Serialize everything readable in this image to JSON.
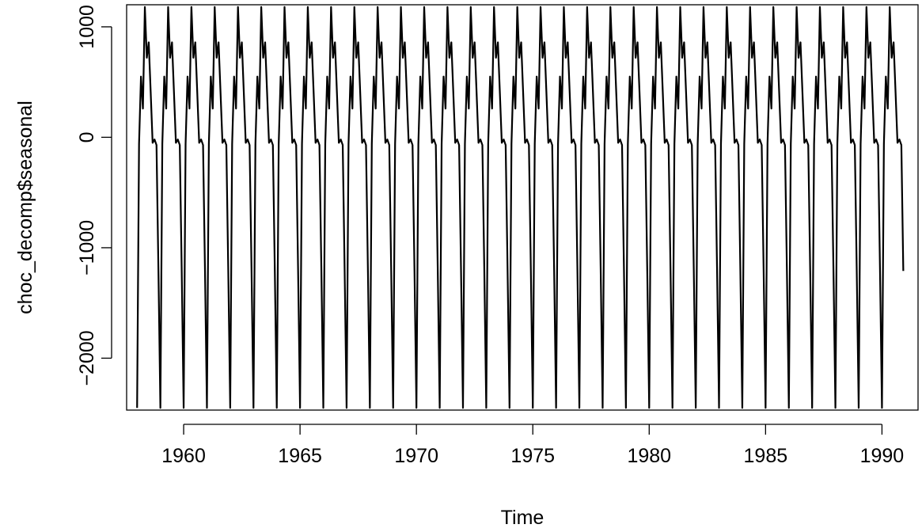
{
  "chart_data": {
    "type": "line",
    "title": "",
    "xlabel": "Time",
    "ylabel": "choc_decomp$seasonal",
    "xlim": [
      1957.55,
      1991.55
    ],
    "ylim": [
      -2470,
      1200
    ],
    "xticks": [
      1960,
      1965,
      1970,
      1975,
      1980,
      1985,
      1990
    ],
    "xtick_labels": [
      "1960",
      "1965",
      "1970",
      "1975",
      "1980",
      "1985",
      "1990"
    ],
    "yticks": [
      -2000,
      -1000,
      0,
      1000
    ],
    "ytick_labels": [
      "−2000",
      "−1000",
      "0",
      "1000"
    ],
    "grid": false,
    "legend": "none",
    "series": [
      {
        "start": 1958.0,
        "frequency": 12,
        "n_periods": 396,
        "seasonal_pattern": [
          -2450,
          -60,
          550,
          260,
          1180,
          720,
          860,
          410,
          -50,
          -20,
          -70,
          -1210
        ]
      }
    ]
  }
}
